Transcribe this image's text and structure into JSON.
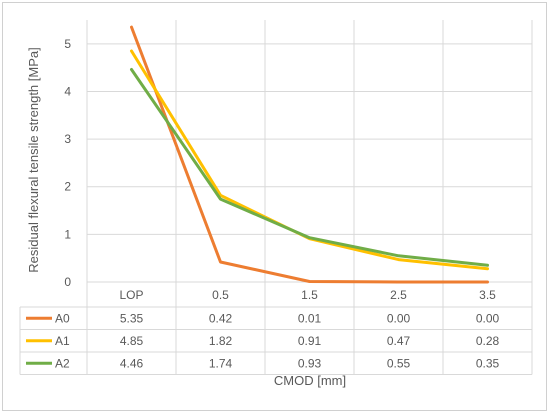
{
  "chart_data": {
    "type": "line",
    "xlabel": "CMOD [mm]",
    "ylabel": "Residual flexural tensile strength [MPa]",
    "categories": [
      "LOP",
      "0.5",
      "1.5",
      "2.5",
      "3.5"
    ],
    "ylim": [
      0,
      5.5
    ],
    "yticks": [
      "0",
      "1",
      "2",
      "3",
      "4",
      "5"
    ],
    "grid": true,
    "legend": "data-table",
    "series": [
      {
        "name": "A0",
        "color": "#ED7D31",
        "values": [
          5.35,
          0.42,
          0.01,
          0.0,
          0.0
        ],
        "labels": [
          "5.35",
          "0.42",
          "0.01",
          "0.00",
          "0.00"
        ]
      },
      {
        "name": "A1",
        "color": "#FFC000",
        "values": [
          4.85,
          1.82,
          0.91,
          0.47,
          0.28
        ],
        "labels": [
          "4.85",
          "1.82",
          "0.91",
          "0.47",
          "0.28"
        ]
      },
      {
        "name": "A2",
        "color": "#70AD47",
        "values": [
          4.46,
          1.74,
          0.93,
          0.55,
          0.35
        ],
        "labels": [
          "4.46",
          "1.74",
          "0.93",
          "0.55",
          "0.35"
        ]
      }
    ]
  }
}
